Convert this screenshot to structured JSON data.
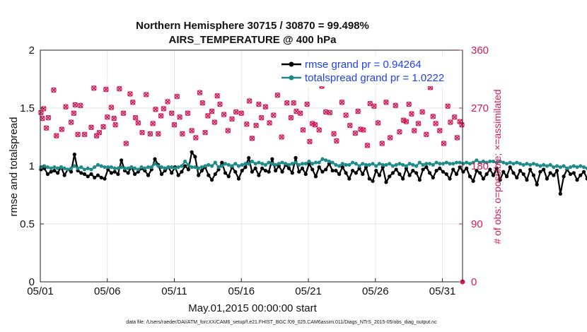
{
  "chart_data": {
    "type": "line",
    "title_line1": "Northern Hemisphere 30715 / 30870 = 99.498%",
    "title_line2": "AIRS_TEMPERATURE @ 400 hPa",
    "xlabel": "May.01,2015 00:00:00 start",
    "ylabel": "rmse and totalspread",
    "ylabel_right": "# of obs: o=possible; ×=assimilated",
    "footnote": "data file: /Users/raeder/DAI/ATM_forcXX/CAM6_setup/f.e21.FHIST_BGC.f09_025.CAM6assim.011/Diags_NTrS_2015-05/obs_diag_output.nc",
    "xlim": [
      0,
      31.5
    ],
    "ylim": [
      0,
      2
    ],
    "ylim_right": [
      0,
      360
    ],
    "x_ticks": [
      0,
      5,
      10,
      15,
      20,
      25,
      30
    ],
    "x_tick_labels": [
      "05/01",
      "05/06",
      "05/11",
      "05/16",
      "05/21",
      "05/26",
      "05/31"
    ],
    "y_ticks": [
      0,
      0.5,
      1,
      1.5,
      2
    ],
    "y_tick_labels": [
      "0",
      "0.5",
      "1",
      "1.5",
      "2"
    ],
    "y_right_ticks": [
      0,
      90,
      180,
      270,
      360
    ],
    "y_right_tick_labels": [
      "0",
      "90",
      "180",
      "270",
      "360"
    ],
    "x_step_days": 0.25,
    "series": [
      {
        "name": "rmse grand pr = 0.94264",
        "color": "#000000",
        "axis": "left",
        "values": [
          0.97,
          0.98,
          0.93,
          0.95,
          0.96,
          0.94,
          0.99,
          0.92,
          0.97,
          0.95,
          1.1,
          0.96,
          0.94,
          0.93,
          0.91,
          0.93,
          0.9,
          0.92,
          0.9,
          0.89,
          0.97,
          0.94,
          0.95,
          0.93,
          1.05,
          0.96,
          0.94,
          0.99,
          0.93,
          0.95,
          0.98,
          0.96,
          0.92,
          0.97,
          1.06,
          1.01,
          0.93,
          0.96,
          0.99,
          0.94,
          0.99,
          0.92,
          0.95,
          1.0,
          0.97,
          1.12,
          1.08,
          0.92,
          0.96,
          0.99,
          0.92,
          0.88,
          0.93,
          0.97,
          1.03,
          0.94,
          0.91,
          0.99,
          0.95,
          0.89,
          0.96,
          0.99,
          1.07,
          0.95,
          0.98,
          0.92,
          0.98,
          0.96,
          0.95,
          1.06,
          0.96,
          1.0,
          0.95,
          1.01,
          0.98,
          0.94,
          1.07,
          0.95,
          0.98,
          0.93,
          1.02,
          0.97,
          0.91,
          0.99,
          0.95,
          0.97,
          1.02,
          0.96,
          0.96,
          0.93,
          0.99,
          0.94,
          0.89,
          0.96,
          0.94,
          0.98,
          0.93,
          0.99,
          0.89,
          0.87,
          0.96,
          0.92,
          0.99,
          0.86,
          0.91,
          0.94,
          0.97,
          0.93,
          0.89,
          0.98,
          0.92,
          0.96,
          0.94,
          0.88,
          0.97,
          0.99,
          0.94,
          0.9,
          0.96,
          0.98,
          0.95,
          0.93,
          0.89,
          0.97,
          0.93,
          0.99,
          0.95,
          0.98,
          0.91,
          0.87,
          0.96,
          0.94,
          0.89,
          0.93,
          0.97,
          0.92,
          0.98,
          0.88,
          0.95,
          0.91,
          0.99,
          0.94,
          0.9,
          0.96,
          0.93,
          0.88,
          0.97,
          0.92,
          0.84,
          0.95,
          0.97,
          0.89,
          0.94,
          0.92,
          0.96,
          0.76,
          0.91,
          0.97,
          0.93,
          0.94,
          0.88,
          0.92,
          0.95,
          0.89,
          0.96,
          0.93,
          0.87,
          0.91,
          0.88,
          0.92,
          0.95,
          0.93,
          0.89,
          0.97,
          0.93,
          0.99,
          0.91,
          0.94,
          0.92,
          0.93,
          0.91,
          0.93
        ]
      },
      {
        "name": "totalspread grand pr = 1.0222",
        "color": "#1f8a8a",
        "axis": "left",
        "values": [
          0.99,
          1.0,
          0.99,
          0.98,
          0.99,
          0.98,
          0.99,
          0.98,
          0.97,
          0.98,
          1.0,
          0.98,
          0.99,
          0.97,
          0.98,
          0.97,
          0.99,
          1.01,
          1.0,
          0.99,
          0.99,
          0.99,
          0.98,
          0.98,
          0.99,
          0.98,
          0.98,
          0.99,
          0.98,
          0.97,
          0.99,
          0.98,
          0.99,
          0.99,
          1.02,
          1.0,
          0.99,
          0.98,
          0.99,
          0.99,
          0.98,
          0.99,
          1.0,
          1.04,
          1.01,
          0.99,
          0.99,
          0.98,
          0.99,
          1.0,
          1.01,
          1.0,
          1.03,
          0.99,
          1.0,
          1.02,
          1.01,
          1.0,
          1.02,
          1.0,
          1.01,
          1.02,
          1.02,
          1.04,
          1.02,
          1.03,
          1.02,
          1.01,
          1.03,
          1.02,
          1.01,
          1.02,
          1.03,
          1.02,
          1.01,
          1.02,
          1.03,
          1.01,
          1.02,
          1.02,
          1.04,
          1.02,
          1.03,
          1.03,
          1.06,
          1.05,
          1.04,
          1.03,
          1.01,
          1.0,
          1.02,
          1.01,
          1.01,
          1.03,
          1.02,
          1.0,
          1.02,
          1.01,
          1.01,
          1.02,
          1.0,
          1.02,
          1.01,
          1.01,
          1.02,
          1.0,
          1.01,
          1.02,
          1.01,
          1.0,
          1.02,
          1.01,
          1.0,
          1.03,
          1.01,
          1.02,
          1.02,
          1.01,
          1.03,
          1.02,
          1.02,
          1.03,
          1.02,
          1.02,
          1.03,
          1.03,
          1.02,
          1.03,
          1.02,
          1.03,
          1.05,
          1.03,
          1.04,
          1.03,
          1.04,
          1.04,
          1.03,
          1.04,
          1.03,
          1.02,
          1.03,
          1.02,
          1.03,
          1.02,
          1.01,
          1.02,
          1.01,
          1.02,
          1.01,
          1.0,
          1.01,
          1.0,
          1.01,
          0.99,
          1.0,
          0.99,
          1.0,
          0.98,
          0.99,
          1.0,
          0.99,
          1.0,
          0.99,
          0.98,
          0.99,
          1.0,
          0.99,
          1.0,
          0.99,
          0.98,
          0.99,
          1.01,
          1.01,
          1.02,
          1.01,
          1.02,
          1.01,
          1.03,
          1.02,
          1.01,
          1.03
        ]
      }
    ],
    "obs_counts": {
      "color": "#d01c5a",
      "axis": "right",
      "points": [
        [
          0.05,
          263
        ],
        [
          0.15,
          254
        ],
        [
          0.25,
          269
        ],
        [
          0.45,
          239
        ],
        [
          0.6,
          255
        ],
        [
          1.0,
          298
        ],
        [
          1.2,
          227
        ],
        [
          1.6,
          237
        ],
        [
          1.9,
          272
        ],
        [
          2.3,
          248
        ],
        [
          2.5,
          262
        ],
        [
          2.6,
          275
        ],
        [
          2.8,
          229
        ],
        [
          3.0,
          274
        ],
        [
          3.3,
          229
        ],
        [
          3.8,
          240
        ],
        [
          4.0,
          301
        ],
        [
          4.2,
          227
        ],
        [
          4.4,
          232
        ],
        [
          4.7,
          241
        ],
        [
          4.9,
          299
        ],
        [
          5.0,
          256
        ],
        [
          5.3,
          271
        ],
        [
          5.5,
          254
        ],
        [
          5.6,
          244
        ],
        [
          5.9,
          300
        ],
        [
          6.2,
          262
        ],
        [
          6.4,
          215
        ],
        [
          6.7,
          292
        ],
        [
          6.9,
          279
        ],
        [
          7.1,
          255
        ],
        [
          7.3,
          247
        ],
        [
          7.6,
          232
        ],
        [
          7.9,
          291
        ],
        [
          8.2,
          230
        ],
        [
          8.4,
          246
        ],
        [
          8.6,
          268
        ],
        [
          8.8,
          230
        ],
        [
          9.0,
          258
        ],
        [
          9.2,
          269
        ],
        [
          9.5,
          280
        ],
        [
          9.8,
          262
        ],
        [
          10.0,
          244
        ],
        [
          10.2,
          288
        ],
        [
          10.4,
          256
        ],
        [
          10.6,
          230
        ],
        [
          11.0,
          262
        ],
        [
          11.3,
          235
        ],
        [
          11.6,
          224
        ],
        [
          11.9,
          294
        ],
        [
          12.1,
          278
        ],
        [
          12.3,
          232
        ],
        [
          12.5,
          258
        ],
        [
          12.8,
          265
        ],
        [
          13.0,
          248
        ],
        [
          13.2,
          289
        ],
        [
          13.4,
          276
        ],
        [
          13.7,
          260
        ],
        [
          14.0,
          235
        ],
        [
          14.3,
          253
        ],
        [
          14.6,
          264
        ],
        [
          15.0,
          262
        ],
        [
          15.4,
          245
        ],
        [
          15.6,
          281
        ],
        [
          15.8,
          223
        ],
        [
          16.1,
          243
        ],
        [
          16.3,
          276
        ],
        [
          16.5,
          255
        ],
        [
          16.8,
          272
        ],
        [
          17.1,
          247
        ],
        [
          17.4,
          259
        ],
        [
          17.7,
          290
        ],
        [
          18.0,
          225
        ],
        [
          18.4,
          278
        ],
        [
          18.7,
          255
        ],
        [
          18.9,
          278
        ],
        [
          19.1,
          265
        ],
        [
          19.4,
          262
        ],
        [
          19.6,
          236
        ],
        [
          19.9,
          276
        ],
        [
          20.1,
          218
        ],
        [
          20.3,
          246
        ],
        [
          20.5,
          244
        ],
        [
          20.8,
          236
        ],
        [
          21.0,
          304
        ],
        [
          21.3,
          264
        ],
        [
          21.6,
          263
        ],
        [
          21.9,
          230
        ],
        [
          22.1,
          219
        ],
        [
          22.5,
          279
        ],
        [
          22.8,
          259
        ],
        [
          23.1,
          243
        ],
        [
          23.5,
          231
        ],
        [
          23.7,
          265
        ],
        [
          23.9,
          237
        ],
        [
          24.1,
          236
        ],
        [
          24.4,
          212
        ],
        [
          24.6,
          277
        ],
        [
          24.9,
          273
        ],
        [
          25.2,
          247
        ],
        [
          25.5,
          215
        ],
        [
          25.8,
          279
        ],
        [
          26.1,
          224
        ],
        [
          26.5,
          274
        ],
        [
          26.8,
          233
        ],
        [
          27.1,
          251
        ],
        [
          27.3,
          249
        ],
        [
          27.5,
          276
        ],
        [
          27.7,
          261
        ],
        [
          27.9,
          235
        ],
        [
          28.2,
          246
        ],
        [
          28.5,
          264
        ],
        [
          28.8,
          229
        ],
        [
          29.1,
          302
        ],
        [
          29.3,
          257
        ],
        [
          29.5,
          246
        ],
        [
          29.8,
          235
        ],
        [
          30.1,
          215
        ],
        [
          30.4,
          273
        ],
        [
          30.6,
          248
        ],
        [
          30.9,
          256
        ],
        [
          31.1,
          224
        ],
        [
          31.3,
          249
        ],
        [
          31.45,
          244
        ]
      ]
    },
    "legend": [
      {
        "label": "rmse grand pr = 0.94264",
        "color": "#000000"
      },
      {
        "label": "totalspread grand pr = 1.0222",
        "color": "#1f8a8a"
      }
    ]
  }
}
